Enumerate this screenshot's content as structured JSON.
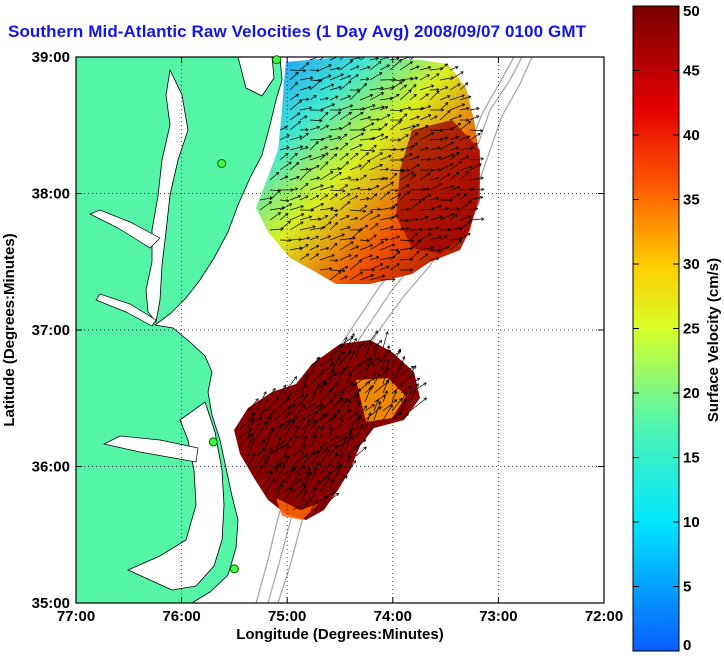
{
  "title": "Southern Mid-Atlantic Raw Velocities (1 Day Avg) 2008/09/07 0100 GMT",
  "map": {
    "xlabel": "Longitude (Degrees:Minutes)",
    "ylabel": "Latitude (Degrees:Minutes)",
    "lon_ticks": [
      "77:00",
      "76:00",
      "75:00",
      "74:00",
      "73:00",
      "72:00"
    ],
    "lat_ticks": [
      "39:00",
      "38:00",
      "37:00",
      "36:00",
      "35:00"
    ],
    "lon_range": [
      -77,
      -72
    ],
    "lat_range": [
      35,
      39
    ],
    "grid": "dotted",
    "land_color": "#54f5a6",
    "stations": [
      {
        "lon": -75.1,
        "lat": 38.98
      },
      {
        "lon": -75.62,
        "lat": 38.22
      },
      {
        "lon": -75.7,
        "lat": 36.18
      },
      {
        "lon": -75.5,
        "lat": 35.25
      }
    ]
  },
  "colorbar": {
    "label": "Surface Velocity (cm/s)",
    "ticks": [
      "0",
      "5",
      "10",
      "15",
      "20",
      "25",
      "30",
      "35",
      "40",
      "45",
      "50"
    ],
    "range": [
      0,
      50
    ]
  }
}
